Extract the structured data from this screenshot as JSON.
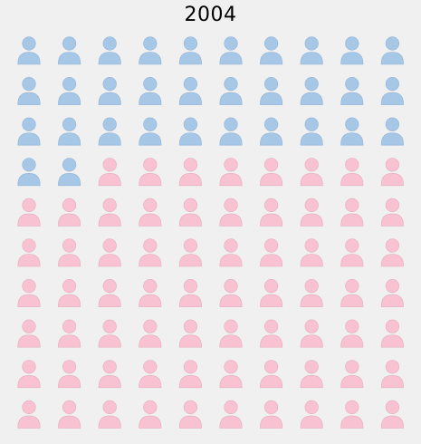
{
  "chart_data": {
    "type": "waffle",
    "title": "2004",
    "grid": {
      "rows": 10,
      "columns": 10
    },
    "series": [
      {
        "value": 32,
        "color": "#a7c7e7"
      },
      {
        "value": 68,
        "color": "#f9c2d2"
      }
    ],
    "legend": "none",
    "icon": "person-icon"
  }
}
